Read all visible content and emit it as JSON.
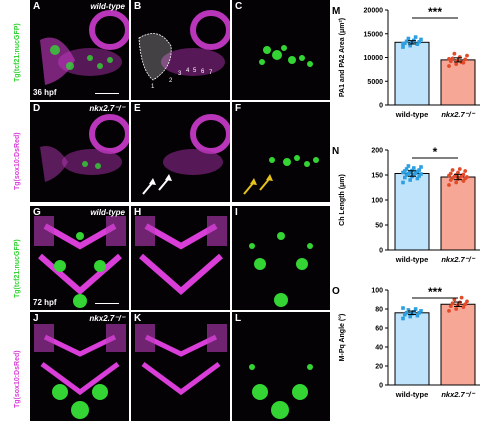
{
  "panels": {
    "A": {
      "label": "A",
      "tag": "wild-type",
      "stage": "36 hpf"
    },
    "B": {
      "label": "B",
      "numbers": [
        "1",
        "2",
        "3",
        "4",
        "5",
        "6",
        "7"
      ]
    },
    "C": {
      "label": "C"
    },
    "D": {
      "label": "D",
      "tag": "nkx2.7⁻/⁻"
    },
    "E": {
      "label": "E"
    },
    "F": {
      "label": "F"
    },
    "G": {
      "label": "G",
      "tag": "wild-type",
      "stage": "72 hpf"
    },
    "H": {
      "label": "H"
    },
    "I": {
      "label": "I"
    },
    "J": {
      "label": "J",
      "tag": "nkx2.7⁻/⁻"
    },
    "K": {
      "label": "K"
    },
    "L": {
      "label": "L"
    }
  },
  "side_labels": {
    "top_green": "Tg(tcf21:nucGFP)",
    "top_magenta": "Tg(sox10:DsRed)",
    "bottom_green": "Tg(tcf21:nucGFP)",
    "bottom_magenta": "Tg(sox10:DsRed)"
  },
  "colors": {
    "magenta": "#d93ed9",
    "green": "#33d433",
    "wt_bar": "#bfe3fb",
    "wt_point": "#2c9fe0",
    "mut_bar": "#f6a796",
    "mut_point": "#e24b2a",
    "arrow_white": "#ffffff",
    "arrow_yellow": "#e6c21c"
  },
  "chart_data": [
    {
      "panel": "M",
      "type": "bar",
      "categories": [
        "wild-type",
        "nkx2.7⁻/⁻"
      ],
      "values": [
        13200,
        9500
      ],
      "points": [
        [
          12200,
          12500,
          12800,
          13000,
          13100,
          13300,
          13400,
          13600,
          13800,
          14000,
          14300,
          12900
        ],
        [
          8200,
          8600,
          8900,
          9200,
          9400,
          9600,
          9800,
          10100,
          10400,
          10800,
          9000,
          9700
        ]
      ],
      "ylabel": "PA1 and PA2 Area (μm²)",
      "ylim": [
        0,
        20000
      ],
      "yticks": [
        "0",
        "5000",
        "10000",
        "15000",
        "20000"
      ],
      "significance": "***"
    },
    {
      "panel": "N",
      "type": "bar",
      "categories": [
        "wild-type",
        "nkx2.7⁻/⁻"
      ],
      "values": [
        153,
        146
      ],
      "points": [
        [
          135,
          140,
          143,
          145,
          147,
          148,
          150,
          151,
          152,
          153,
          154,
          155,
          156,
          157,
          158,
          159,
          160,
          162,
          164,
          166,
          168
        ],
        [
          130,
          135,
          138,
          140,
          142,
          143,
          144,
          145,
          146,
          147,
          148,
          149,
          150,
          151,
          153,
          155,
          158,
          160,
          162
        ]
      ],
      "ylabel": "Ch Length (μm)",
      "ylim": [
        0,
        200
      ],
      "yticks": [
        "0",
        "50",
        "100",
        "150",
        "200"
      ],
      "significance": "*"
    },
    {
      "panel": "O",
      "type": "bar",
      "categories": [
        "wild-type",
        "nkx2.7⁻/⁻"
      ],
      "values": [
        76,
        85
      ],
      "points": [
        [
          70,
          72,
          73,
          74,
          75,
          76,
          76,
          77,
          78,
          79,
          80,
          81
        ],
        [
          78,
          80,
          82,
          83,
          84,
          85,
          86,
          87,
          88,
          90,
          92
        ]
      ],
      "ylabel": "M-Pq Angle (°)",
      "ylim": [
        0,
        100
      ],
      "yticks": [
        "0",
        "20",
        "40",
        "60",
        "80",
        "100"
      ],
      "significance": "***"
    }
  ]
}
